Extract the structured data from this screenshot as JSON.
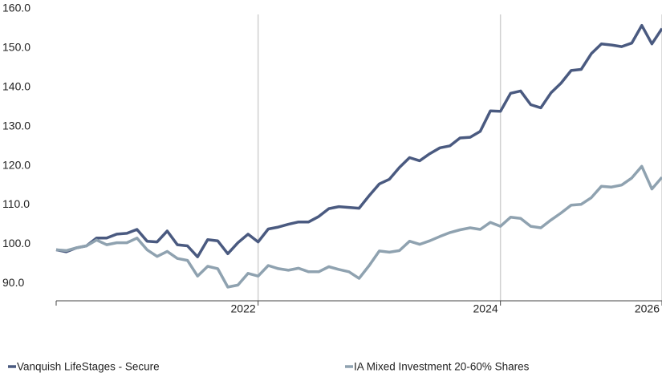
{
  "chart_data": {
    "type": "line",
    "categories": [
      null,
      null,
      null,
      null,
      null,
      null,
      null,
      null,
      null,
      null,
      null,
      null,
      null,
      null,
      null,
      null,
      null,
      null,
      null,
      null,
      "2022",
      null,
      null,
      null,
      null,
      null,
      null,
      null,
      null,
      null,
      null,
      null,
      null,
      null,
      null,
      null,
      null,
      null,
      null,
      null,
      null,
      null,
      null,
      null,
      "2024",
      null,
      null,
      null,
      null,
      null,
      null,
      null,
      null,
      null,
      null,
      null,
      null,
      null,
      null,
      null,
      "2026"
    ],
    "series": [
      {
        "name": "Vanquish LifeStages - Secure",
        "color": "#4a5a80",
        "values": [
          100,
          99.5,
          100.5,
          101,
          103,
          103,
          104,
          104.2,
          105.2,
          102.2,
          102,
          104.8,
          101.3,
          101,
          98.2,
          102.6,
          102.3,
          99,
          101.8,
          104,
          102,
          105.3,
          105.8,
          106.5,
          107.1,
          107.1,
          108.5,
          110.5,
          111,
          110.8,
          110.6,
          113.8,
          116.8,
          118,
          121,
          123.5,
          122.7,
          124.5,
          126,
          126.5,
          128.5,
          128.7,
          130.2,
          135.4,
          135.3,
          139.9,
          140.5,
          137,
          136.2,
          140,
          142.5,
          145.7,
          146,
          150,
          152.5,
          152.2,
          151.8,
          152.7,
          157.2,
          152.5,
          156.4
        ]
      },
      {
        "name": "IA Mixed Investment 20-60% Shares",
        "color": "#8fa2b0",
        "values": [
          100,
          99.8,
          100.5,
          101,
          102.5,
          101.3,
          101.8,
          101.8,
          103,
          100,
          98.3,
          99.6,
          97.8,
          97.3,
          93.3,
          95.8,
          95.2,
          90.5,
          91,
          94,
          93.3,
          96,
          95.2,
          94.8,
          95.3,
          94.4,
          94.4,
          95.7,
          95,
          94.4,
          92.7,
          96,
          99.7,
          99.4,
          99.8,
          102.2,
          101.4,
          102.3,
          103.4,
          104.4,
          105.1,
          105.6,
          105.2,
          107,
          106,
          108.3,
          108,
          106,
          105.6,
          107.6,
          109.4,
          111.4,
          111.6,
          113.3,
          116.2,
          116,
          116.5,
          118.3,
          121.3,
          115.5,
          118.5
        ]
      }
    ],
    "ylim": [
      87,
      160
    ],
    "yticks": [
      {
        "value": 90,
        "label": "90.0"
      },
      {
        "value": 100,
        "label": "100.0"
      },
      {
        "value": 110,
        "label": "110.0"
      },
      {
        "value": 120,
        "label": "120.0"
      },
      {
        "value": 130,
        "label": "130.0"
      },
      {
        "value": 140,
        "label": "140.0"
      },
      {
        "value": 150,
        "label": "150.0"
      },
      {
        "value": 160,
        "label": "160.0"
      }
    ],
    "grid": true
  }
}
